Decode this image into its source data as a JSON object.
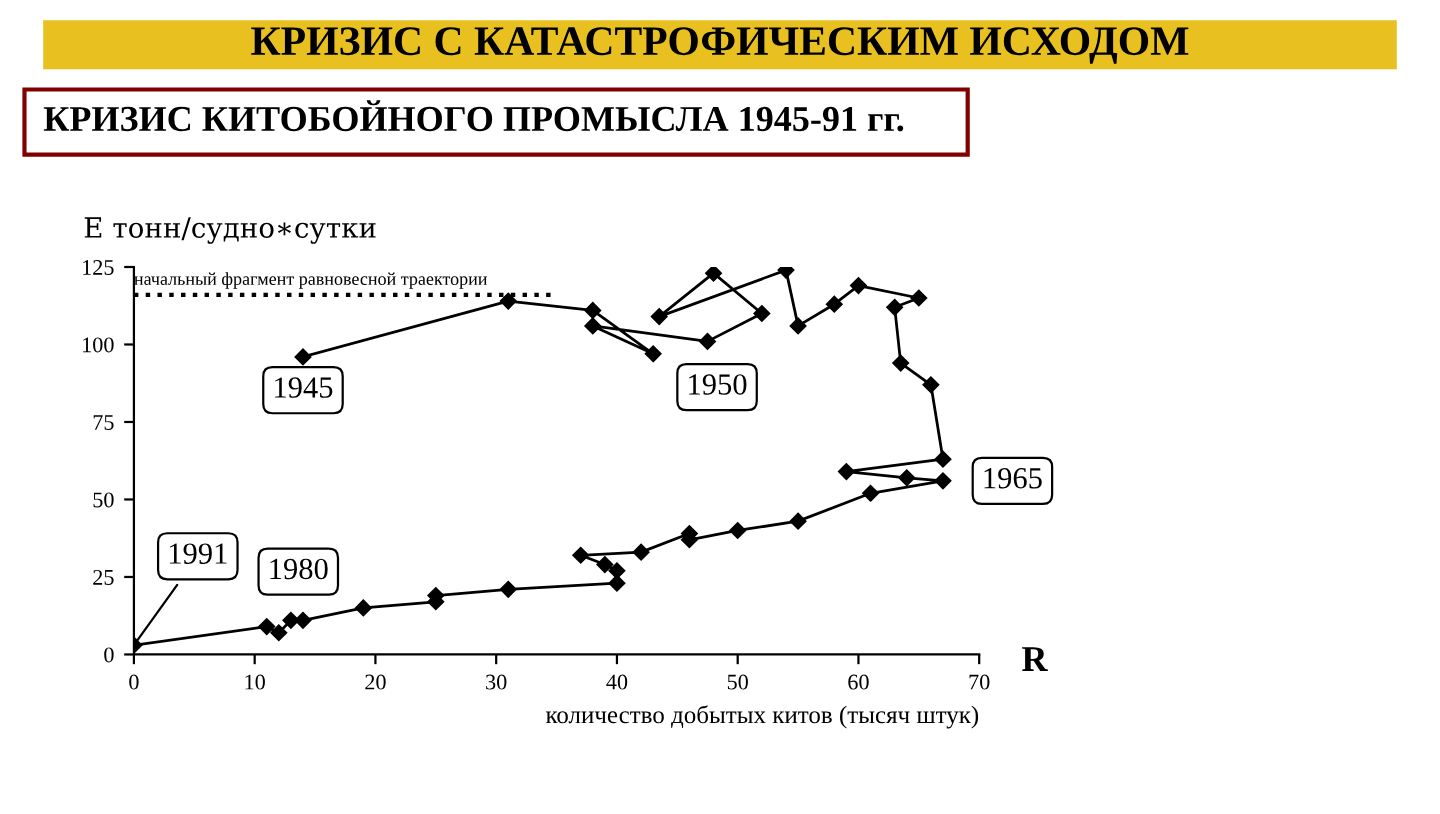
{
  "chart_data": {
    "type": "line",
    "title": "КРИЗИС С КАТАСТРОФИЧЕСКИМ ИСХОДОМ",
    "subtitle": "КРИЗИС КИТОБОЙНОГО ПРОМЫСЛА 1945-91 гг.",
    "ylabel": "E тонн/судно∗сутки",
    "xlabel": "количество добытых китов (тысяч штук)",
    "xlim": [
      0,
      70
    ],
    "ylim": [
      0,
      125
    ],
    "xticks": [
      0,
      10,
      20,
      30,
      40,
      50,
      60,
      70
    ],
    "yticks": [
      0,
      25,
      50,
      75,
      100,
      125
    ],
    "grid": false,
    "legend": false,
    "marker": "diamond",
    "line_style": "solid",
    "series": [
      {
        "color": "#000000",
        "x": [
          14,
          31,
          38,
          43,
          38,
          47.5,
          52,
          48,
          43.5,
          54,
          55,
          58,
          60,
          65,
          63,
          63.5,
          66,
          67,
          59,
          64,
          67,
          61,
          55,
          50,
          46,
          46,
          42,
          37,
          39,
          40,
          40,
          31,
          25,
          25,
          19,
          14,
          13,
          12,
          11,
          0
        ],
        "values": [
          96,
          114,
          111,
          97,
          106,
          101,
          110,
          123,
          109,
          124,
          106,
          113,
          119,
          115,
          112,
          94,
          87,
          63,
          59,
          57,
          56,
          52,
          43,
          40,
          37,
          39,
          33,
          32,
          29,
          27,
          23,
          21,
          19,
          17,
          15,
          11,
          11,
          7,
          9,
          3
        ]
      },
      {
        "color": "#000000",
        "x": [
          0,
          35
        ],
        "values": [
          116,
          116
        ],
        "marker": "none",
        "line_style": "dotted"
      }
    ],
    "annotations": [
      {
        "text": "начальный фрагмент равновесной траектории",
        "x": 0,
        "y": 116
      },
      {
        "text": "1945",
        "x": 14,
        "y": 96
      },
      {
        "text": "1950",
        "x": 43,
        "y": 97
      },
      {
        "text": "1965",
        "x": 67,
        "y": 56
      },
      {
        "text": "1980",
        "x": 12,
        "y": 7
      },
      {
        "text": "1991",
        "x": 0,
        "y": 3
      },
      "R"
    ]
  }
}
